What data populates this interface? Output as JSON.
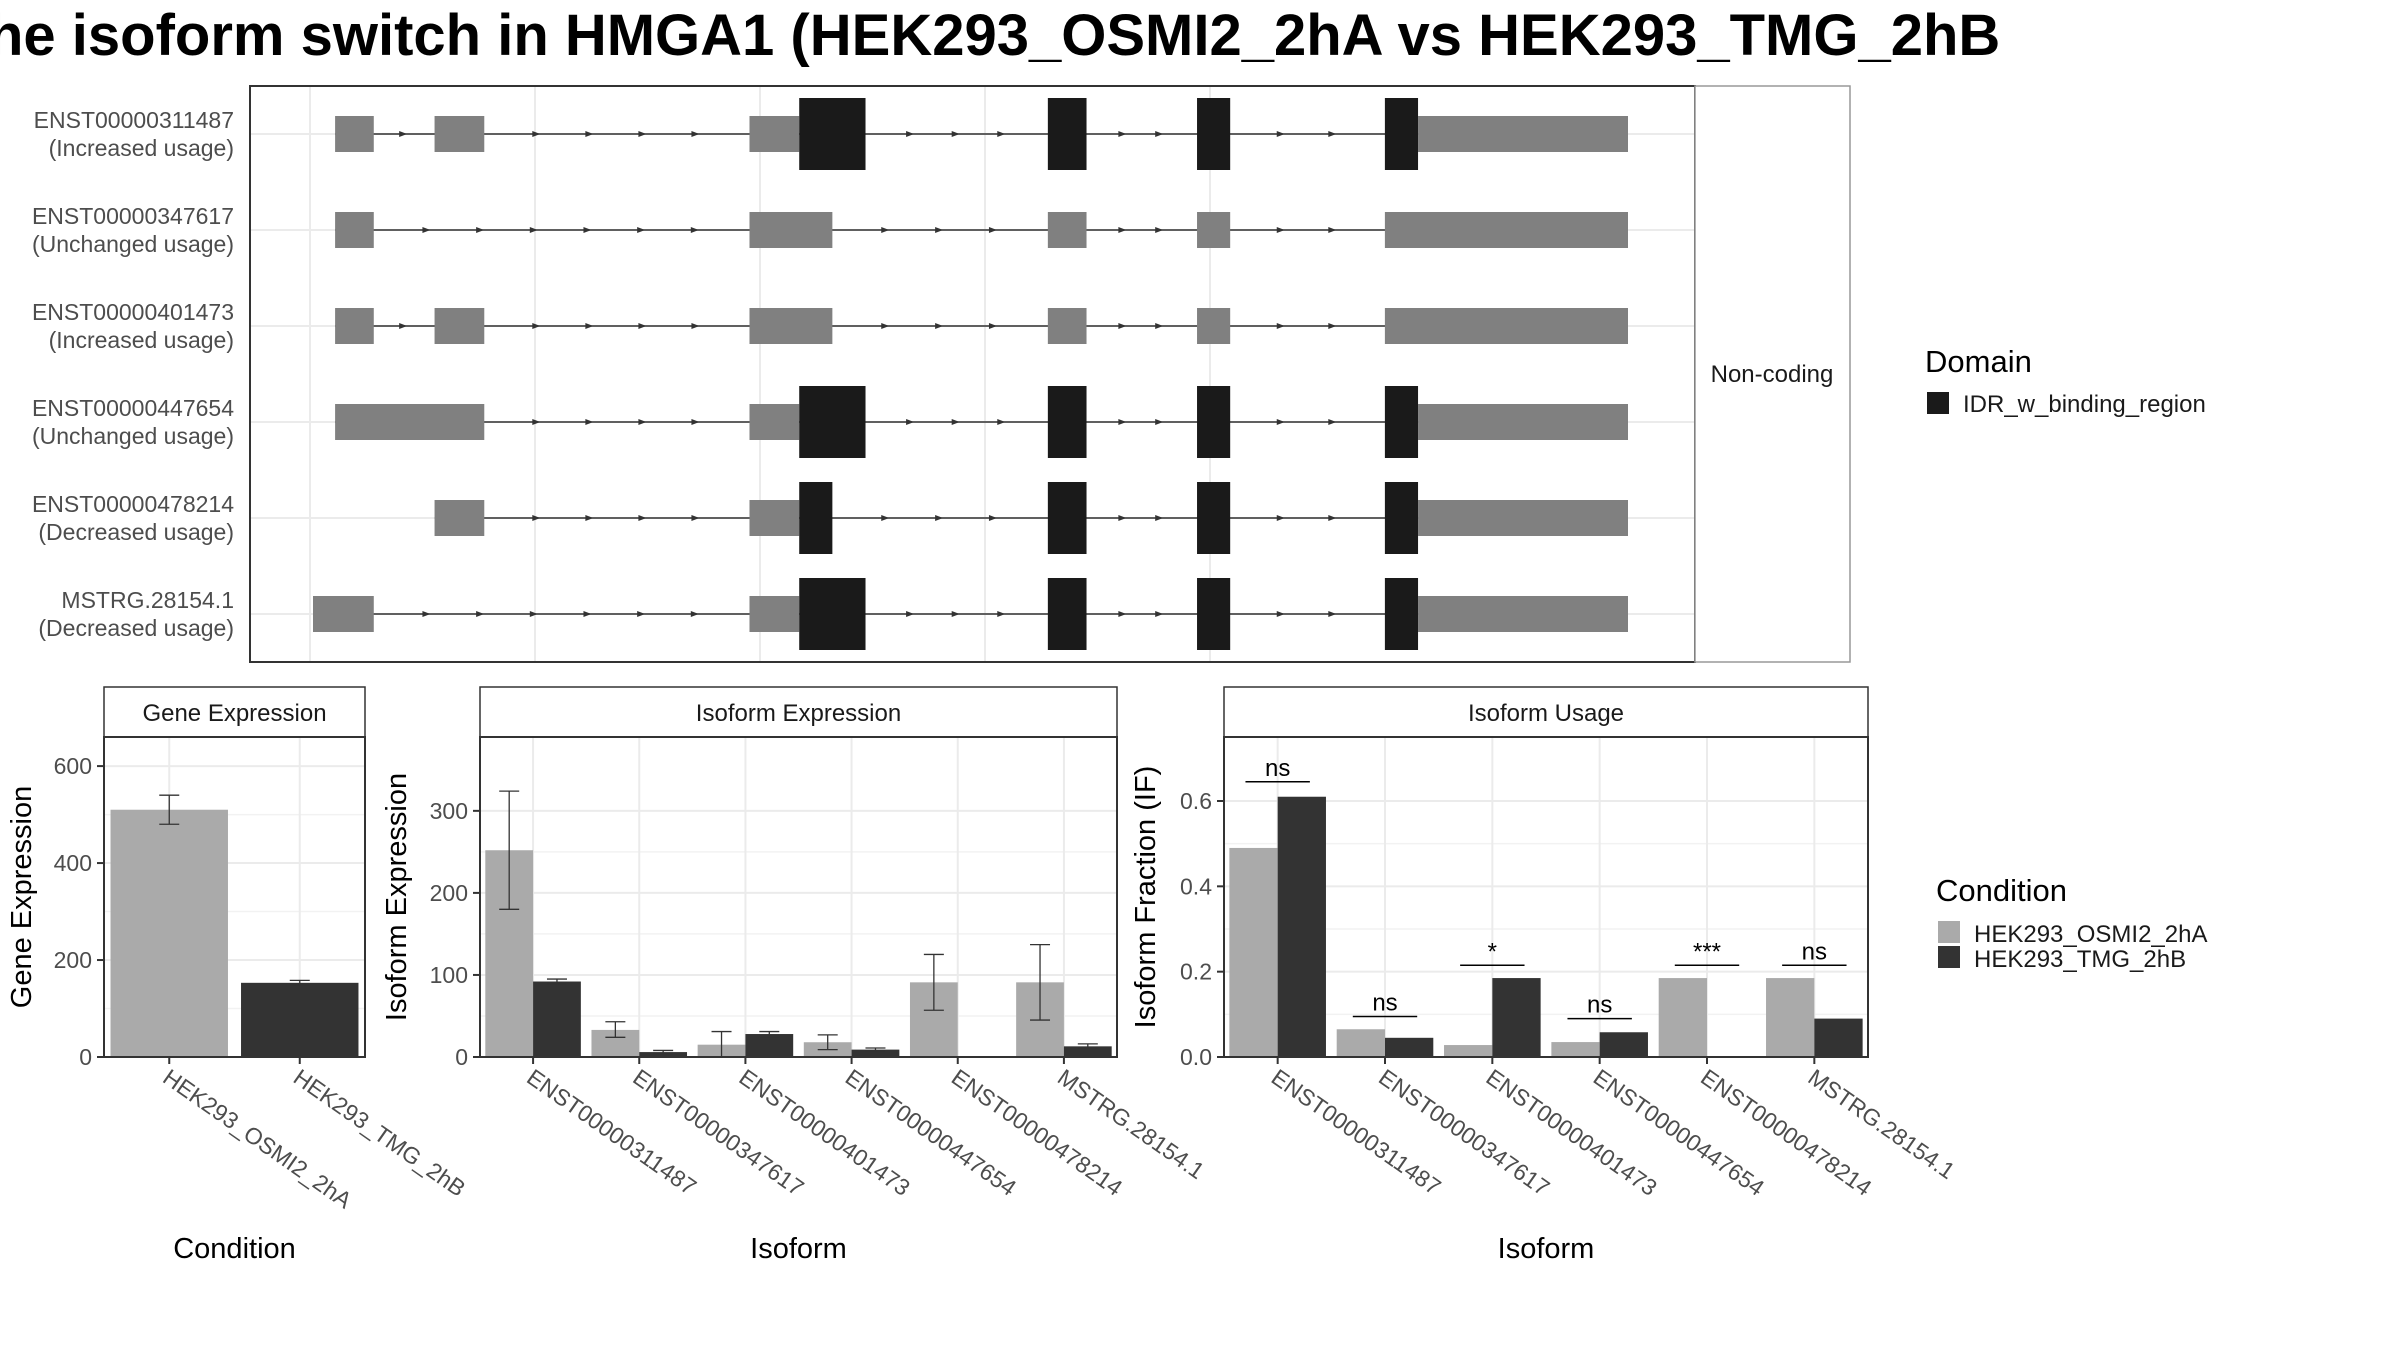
{
  "title": "he isoform switch in HMGA1 (HEK293_OSMI2_2hA vs HEK293_TMG_2hB",
  "colors": {
    "condition_a": "#aaaaaa",
    "condition_b": "#333333",
    "exon": "#808080",
    "domain": "#1a1a1a"
  },
  "chart_data": [
    {
      "type": "gene_structure",
      "strip_label": "Non-coding",
      "legend": {
        "title": "Domain",
        "items": [
          "IDR_w_binding_region"
        ]
      },
      "x_range": [
        0,
        100
      ],
      "transcripts": [
        {
          "id": "ENST00000311487",
          "usage": "(Increased usage)",
          "exons": [
            [
              2.0,
              5.5
            ],
            [
              11.0,
              15.5
            ],
            [
              39.5,
              44.0,
              "utr"
            ],
            [
              44.0,
              50.0,
              "cds"
            ],
            [
              66.5,
              70.0,
              "cds"
            ],
            [
              80.0,
              83.0,
              "cds"
            ],
            [
              97.0,
              100.0,
              "cds"
            ],
            [
              100.0,
              119.0
            ]
          ]
        },
        {
          "id": "ENST00000347617",
          "usage": "(Unchanged usage)",
          "exons": [
            [
              2.0,
              5.5
            ],
            [
              39.5,
              47.0
            ],
            [
              66.5,
              70.0
            ],
            [
              80.0,
              83.0
            ],
            [
              97.0,
              119.0
            ]
          ]
        },
        {
          "id": "ENST00000401473",
          "usage": "(Increased usage)",
          "exons": [
            [
              2.0,
              5.5
            ],
            [
              11.0,
              15.5
            ],
            [
              39.5,
              47.0
            ],
            [
              66.5,
              70.0
            ],
            [
              80.0,
              83.0
            ],
            [
              97.0,
              119.0
            ]
          ]
        },
        {
          "id": "ENST00000447654",
          "usage": "(Unchanged usage)",
          "exons": [
            [
              2.0,
              15.5
            ],
            [
              39.5,
              44.0,
              "utr"
            ],
            [
              44.0,
              50.0,
              "cds"
            ],
            [
              66.5,
              70.0,
              "cds"
            ],
            [
              80.0,
              83.0,
              "cds"
            ],
            [
              97.0,
              100.0,
              "cds"
            ],
            [
              100.0,
              119.0
            ]
          ]
        },
        {
          "id": "ENST00000478214",
          "usage": "(Decreased usage)",
          "exons": [
            [
              11.0,
              15.5
            ],
            [
              39.5,
              44.0,
              "utr"
            ],
            [
              44.0,
              47.0,
              "cds"
            ],
            [
              66.5,
              70.0,
              "cds"
            ],
            [
              80.0,
              83.0,
              "cds"
            ],
            [
              97.0,
              100.0,
              "cds"
            ],
            [
              100.0,
              119.0
            ]
          ]
        },
        {
          "id": "MSTRG.28154.1",
          "usage": "(Decreased usage)",
          "exons": [
            [
              0.0,
              5.5
            ],
            [
              39.5,
              44.0,
              "utr"
            ],
            [
              44.0,
              50.0,
              "cds"
            ],
            [
              66.5,
              70.0,
              "cds"
            ],
            [
              80.0,
              83.0,
              "cds"
            ],
            [
              97.0,
              100.0,
              "cds"
            ],
            [
              100.0,
              119.0
            ]
          ]
        }
      ]
    },
    {
      "type": "bar",
      "strip_label": "Gene Expression",
      "xlabel": "Condition",
      "ylabel": "Gene Expression",
      "ylim": [
        0,
        660
      ],
      "yticks": [
        0,
        200,
        400,
        600
      ],
      "categories": [
        "HEK293_OSMI2_2hA",
        "HEK293_TMG_2hB"
      ],
      "values": [
        510,
        153
      ],
      "errors": [
        [
          480,
          540
        ],
        [
          149,
          158
        ]
      ]
    },
    {
      "type": "bar",
      "strip_label": "Isoform Expression",
      "xlabel": "Isoform",
      "ylabel": "Isoform Expression",
      "ylim": [
        0,
        390
      ],
      "yticks": [
        0,
        100,
        200,
        300
      ],
      "categories": [
        "ENST00000311487",
        "ENST00000347617",
        "ENST00000401473",
        "ENST00000447654",
        "ENST00000478214",
        "MSTRG.28154.1"
      ],
      "series": [
        {
          "name": "HEK293_OSMI2_2hA",
          "values": [
            252,
            33,
            15,
            18,
            91,
            91
          ],
          "errors": [
            [
              180,
              324
            ],
            [
              24,
              43
            ],
            [
              0,
              31
            ],
            [
              9,
              27
            ],
            [
              57,
              125
            ],
            [
              45,
              137
            ]
          ]
        },
        {
          "name": "HEK293_TMG_2hB",
          "values": [
            92,
            6,
            28,
            9,
            0,
            13
          ],
          "errors": [
            [
              89,
              95
            ],
            [
              4,
              8
            ],
            [
              25,
              31
            ],
            [
              7,
              11
            ],
            [
              0,
              0
            ],
            [
              10,
              16
            ]
          ]
        }
      ]
    },
    {
      "type": "bar",
      "strip_label": "Isoform Usage",
      "xlabel": "Isoform",
      "ylabel": "Isoform Fraction (IF)",
      "ylim": [
        0,
        0.75
      ],
      "yticks": [
        "0.0",
        "0.2",
        "0.4",
        "0.6"
      ],
      "categories": [
        "ENST00000311487",
        "ENST00000347617",
        "ENST00000401473",
        "ENST00000447654",
        "ENST00000478214",
        "MSTRG.28154.1"
      ],
      "series": [
        {
          "name": "HEK293_OSMI2_2hA",
          "values": [
            0.49,
            0.065,
            0.028,
            0.035,
            0.185,
            0.185
          ]
        },
        {
          "name": "HEK293_TMG_2hB",
          "values": [
            0.61,
            0.045,
            0.185,
            0.058,
            0.0,
            0.09
          ]
        }
      ],
      "significance": [
        "ns",
        "ns",
        "*",
        "ns",
        "***",
        "ns"
      ],
      "significance_level": [
        0.645,
        0.095,
        0.215,
        0.09,
        0.215,
        0.215
      ]
    }
  ],
  "condition_legend": {
    "title": "Condition",
    "items": [
      "HEK293_OSMI2_2hA",
      "HEK293_TMG_2hB"
    ]
  }
}
